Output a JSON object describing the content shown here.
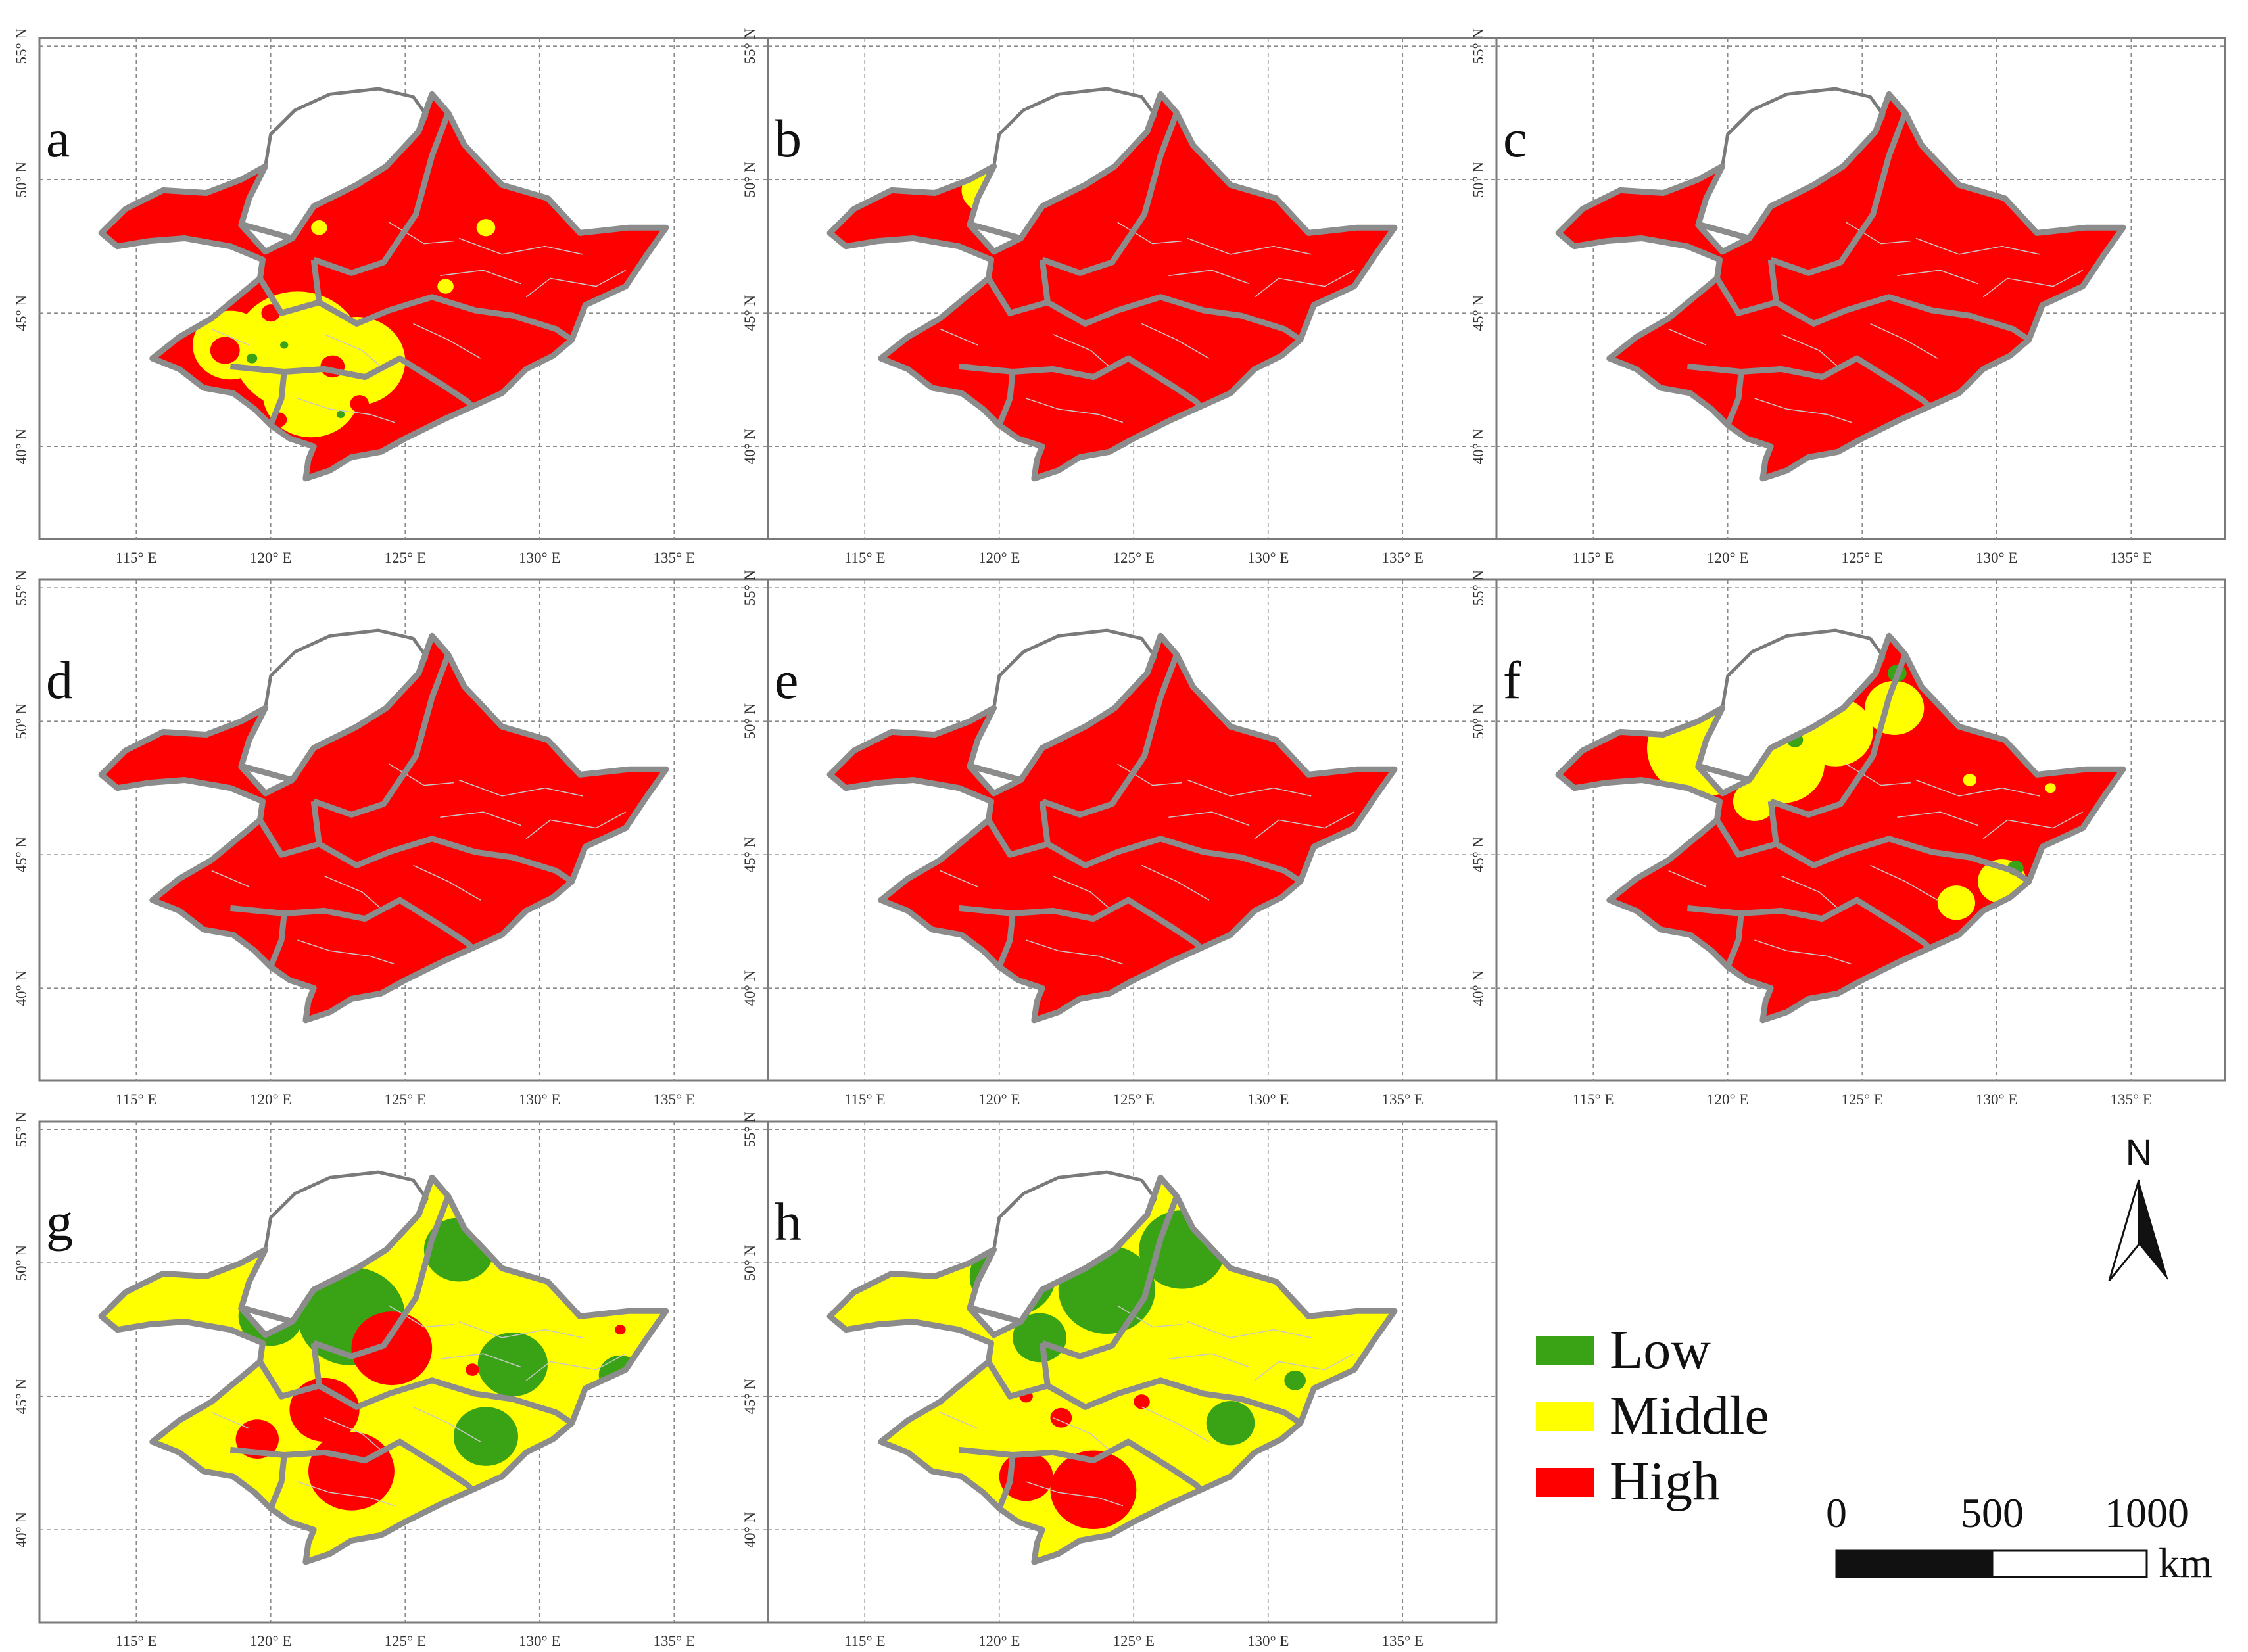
{
  "colors": {
    "low": "#3aa315",
    "middle": "#ffff00",
    "high": "#ff0000",
    "no_data": "#ffffff"
  },
  "axes": {
    "longitude_ticks": [
      "115° E",
      "120° E",
      "125° E",
      "130° E",
      "135° E"
    ],
    "latitude_ticks": [
      "40° N",
      "45° N",
      "50° N",
      "55° N"
    ]
  },
  "panels": [
    {
      "letter": "a",
      "dominant": "high",
      "patches": [
        {
          "cls": "middle",
          "lon": 121.0,
          "lat": 43.6,
          "r": 2.4
        },
        {
          "cls": "middle",
          "lon": 123.2,
          "lat": 43.2,
          "r": 1.8
        },
        {
          "cls": "middle",
          "lon": 121.5,
          "lat": 42.0,
          "r": 1.8
        },
        {
          "cls": "middle",
          "lon": 118.5,
          "lat": 43.8,
          "r": 1.4
        },
        {
          "cls": "middle",
          "lon": 121.8,
          "lat": 48.2,
          "r": 0.3
        },
        {
          "cls": "middle",
          "lon": 128.0,
          "lat": 48.2,
          "r": 0.35
        },
        {
          "cls": "middle",
          "lon": 126.5,
          "lat": 46.0,
          "r": 0.3
        },
        {
          "cls": "high",
          "lon": 118.3,
          "lat": 43.6,
          "r": 0.55
        },
        {
          "cls": "high",
          "lon": 120.0,
          "lat": 45.0,
          "r": 0.35
        },
        {
          "cls": "high",
          "lon": 122.3,
          "lat": 43.0,
          "r": 0.45
        },
        {
          "cls": "high",
          "lon": 120.3,
          "lat": 41.0,
          "r": 0.3
        },
        {
          "cls": "high",
          "lon": 123.3,
          "lat": 41.6,
          "r": 0.35
        },
        {
          "cls": "low",
          "lon": 119.3,
          "lat": 43.3,
          "r": 0.2
        },
        {
          "cls": "low",
          "lon": 120.5,
          "lat": 43.8,
          "r": 0.15
        },
        {
          "cls": "low",
          "lon": 122.6,
          "lat": 41.2,
          "r": 0.15
        }
      ]
    },
    {
      "letter": "b",
      "dominant": "high",
      "patches": [
        {
          "cls": "middle",
          "lon": 119.5,
          "lat": 49.6,
          "r": 0.9
        }
      ]
    },
    {
      "letter": "c",
      "dominant": "high",
      "patches": []
    },
    {
      "letter": "d",
      "dominant": "high",
      "patches": []
    },
    {
      "letter": "e",
      "dominant": "high",
      "patches": []
    },
    {
      "letter": "f",
      "dominant": "high",
      "patches": [
        {
          "cls": "middle",
          "lon": 119.0,
          "lat": 49.0,
          "r": 2.0
        },
        {
          "cls": "middle",
          "lon": 122.0,
          "lat": 48.4,
          "r": 1.6
        },
        {
          "cls": "middle",
          "lon": 124.0,
          "lat": 49.6,
          "r": 1.4
        },
        {
          "cls": "middle",
          "lon": 126.2,
          "lat": 50.5,
          "r": 1.1
        },
        {
          "cls": "middle",
          "lon": 121.0,
          "lat": 47.0,
          "r": 0.8
        },
        {
          "cls": "middle",
          "lon": 130.2,
          "lat": 44.0,
          "r": 0.9
        },
        {
          "cls": "middle",
          "lon": 128.5,
          "lat": 43.2,
          "r": 0.7
        },
        {
          "cls": "middle",
          "lon": 129.0,
          "lat": 47.8,
          "r": 0.25
        },
        {
          "cls": "middle",
          "lon": 132.0,
          "lat": 47.5,
          "r": 0.2
        },
        {
          "cls": "low",
          "lon": 126.3,
          "lat": 51.8,
          "r": 0.35
        },
        {
          "cls": "low",
          "lon": 130.7,
          "lat": 44.5,
          "r": 0.3
        },
        {
          "cls": "low",
          "lon": 122.5,
          "lat": 49.3,
          "r": 0.3
        }
      ]
    },
    {
      "letter": "g",
      "dominant": "middle",
      "patches": [
        {
          "cls": "low",
          "lon": 123.0,
          "lat": 48.0,
          "r": 2.0
        },
        {
          "cls": "low",
          "lon": 120.0,
          "lat": 48.0,
          "r": 1.2
        },
        {
          "cls": "low",
          "lon": 127.0,
          "lat": 50.5,
          "r": 1.3
        },
        {
          "cls": "low",
          "lon": 129.0,
          "lat": 46.2,
          "r": 1.3
        },
        {
          "cls": "low",
          "lon": 128.0,
          "lat": 43.5,
          "r": 1.2
        },
        {
          "cls": "low",
          "lon": 133.0,
          "lat": 45.8,
          "r": 0.8
        },
        {
          "cls": "high",
          "lon": 124.5,
          "lat": 46.8,
          "r": 1.5
        },
        {
          "cls": "high",
          "lon": 122.0,
          "lat": 44.5,
          "r": 1.3
        },
        {
          "cls": "high",
          "lon": 123.0,
          "lat": 42.2,
          "r": 1.6
        },
        {
          "cls": "high",
          "lon": 119.5,
          "lat": 43.4,
          "r": 0.8
        },
        {
          "cls": "high",
          "lon": 127.5,
          "lat": 46.0,
          "r": 0.25
        },
        {
          "cls": "high",
          "lon": 133.0,
          "lat": 47.5,
          "r": 0.2
        }
      ]
    },
    {
      "letter": "h",
      "dominant": "middle",
      "patches": [
        {
          "cls": "low",
          "lon": 120.5,
          "lat": 49.5,
          "r": 1.6
        },
        {
          "cls": "low",
          "lon": 124.0,
          "lat": 49.0,
          "r": 1.8
        },
        {
          "cls": "low",
          "lon": 126.8,
          "lat": 50.5,
          "r": 1.6
        },
        {
          "cls": "low",
          "lon": 121.5,
          "lat": 47.2,
          "r": 1.0
        },
        {
          "cls": "low",
          "lon": 128.6,
          "lat": 44.0,
          "r": 0.9
        },
        {
          "cls": "low",
          "lon": 131.0,
          "lat": 45.6,
          "r": 0.4
        },
        {
          "cls": "high",
          "lon": 123.5,
          "lat": 41.5,
          "r": 1.6
        },
        {
          "cls": "high",
          "lon": 121.0,
          "lat": 42.0,
          "r": 1.0
        },
        {
          "cls": "high",
          "lon": 122.3,
          "lat": 44.2,
          "r": 0.4
        },
        {
          "cls": "high",
          "lon": 125.3,
          "lat": 44.8,
          "r": 0.3
        },
        {
          "cls": "high",
          "lon": 121.0,
          "lat": 45.0,
          "r": 0.25
        },
        {
          "cls": "middle",
          "lon": 118.7,
          "lat": 48.8,
          "r": 0.4
        }
      ]
    }
  ],
  "legend": [
    {
      "label": "Low",
      "cls": "low"
    },
    {
      "label": "Middle",
      "cls": "middle"
    },
    {
      "label": "High",
      "cls": "high"
    }
  ],
  "north_arrow": {
    "label": "N"
  },
  "scale_bar": {
    "ticks": [
      "0",
      "500",
      "1000"
    ],
    "unit": "km"
  }
}
